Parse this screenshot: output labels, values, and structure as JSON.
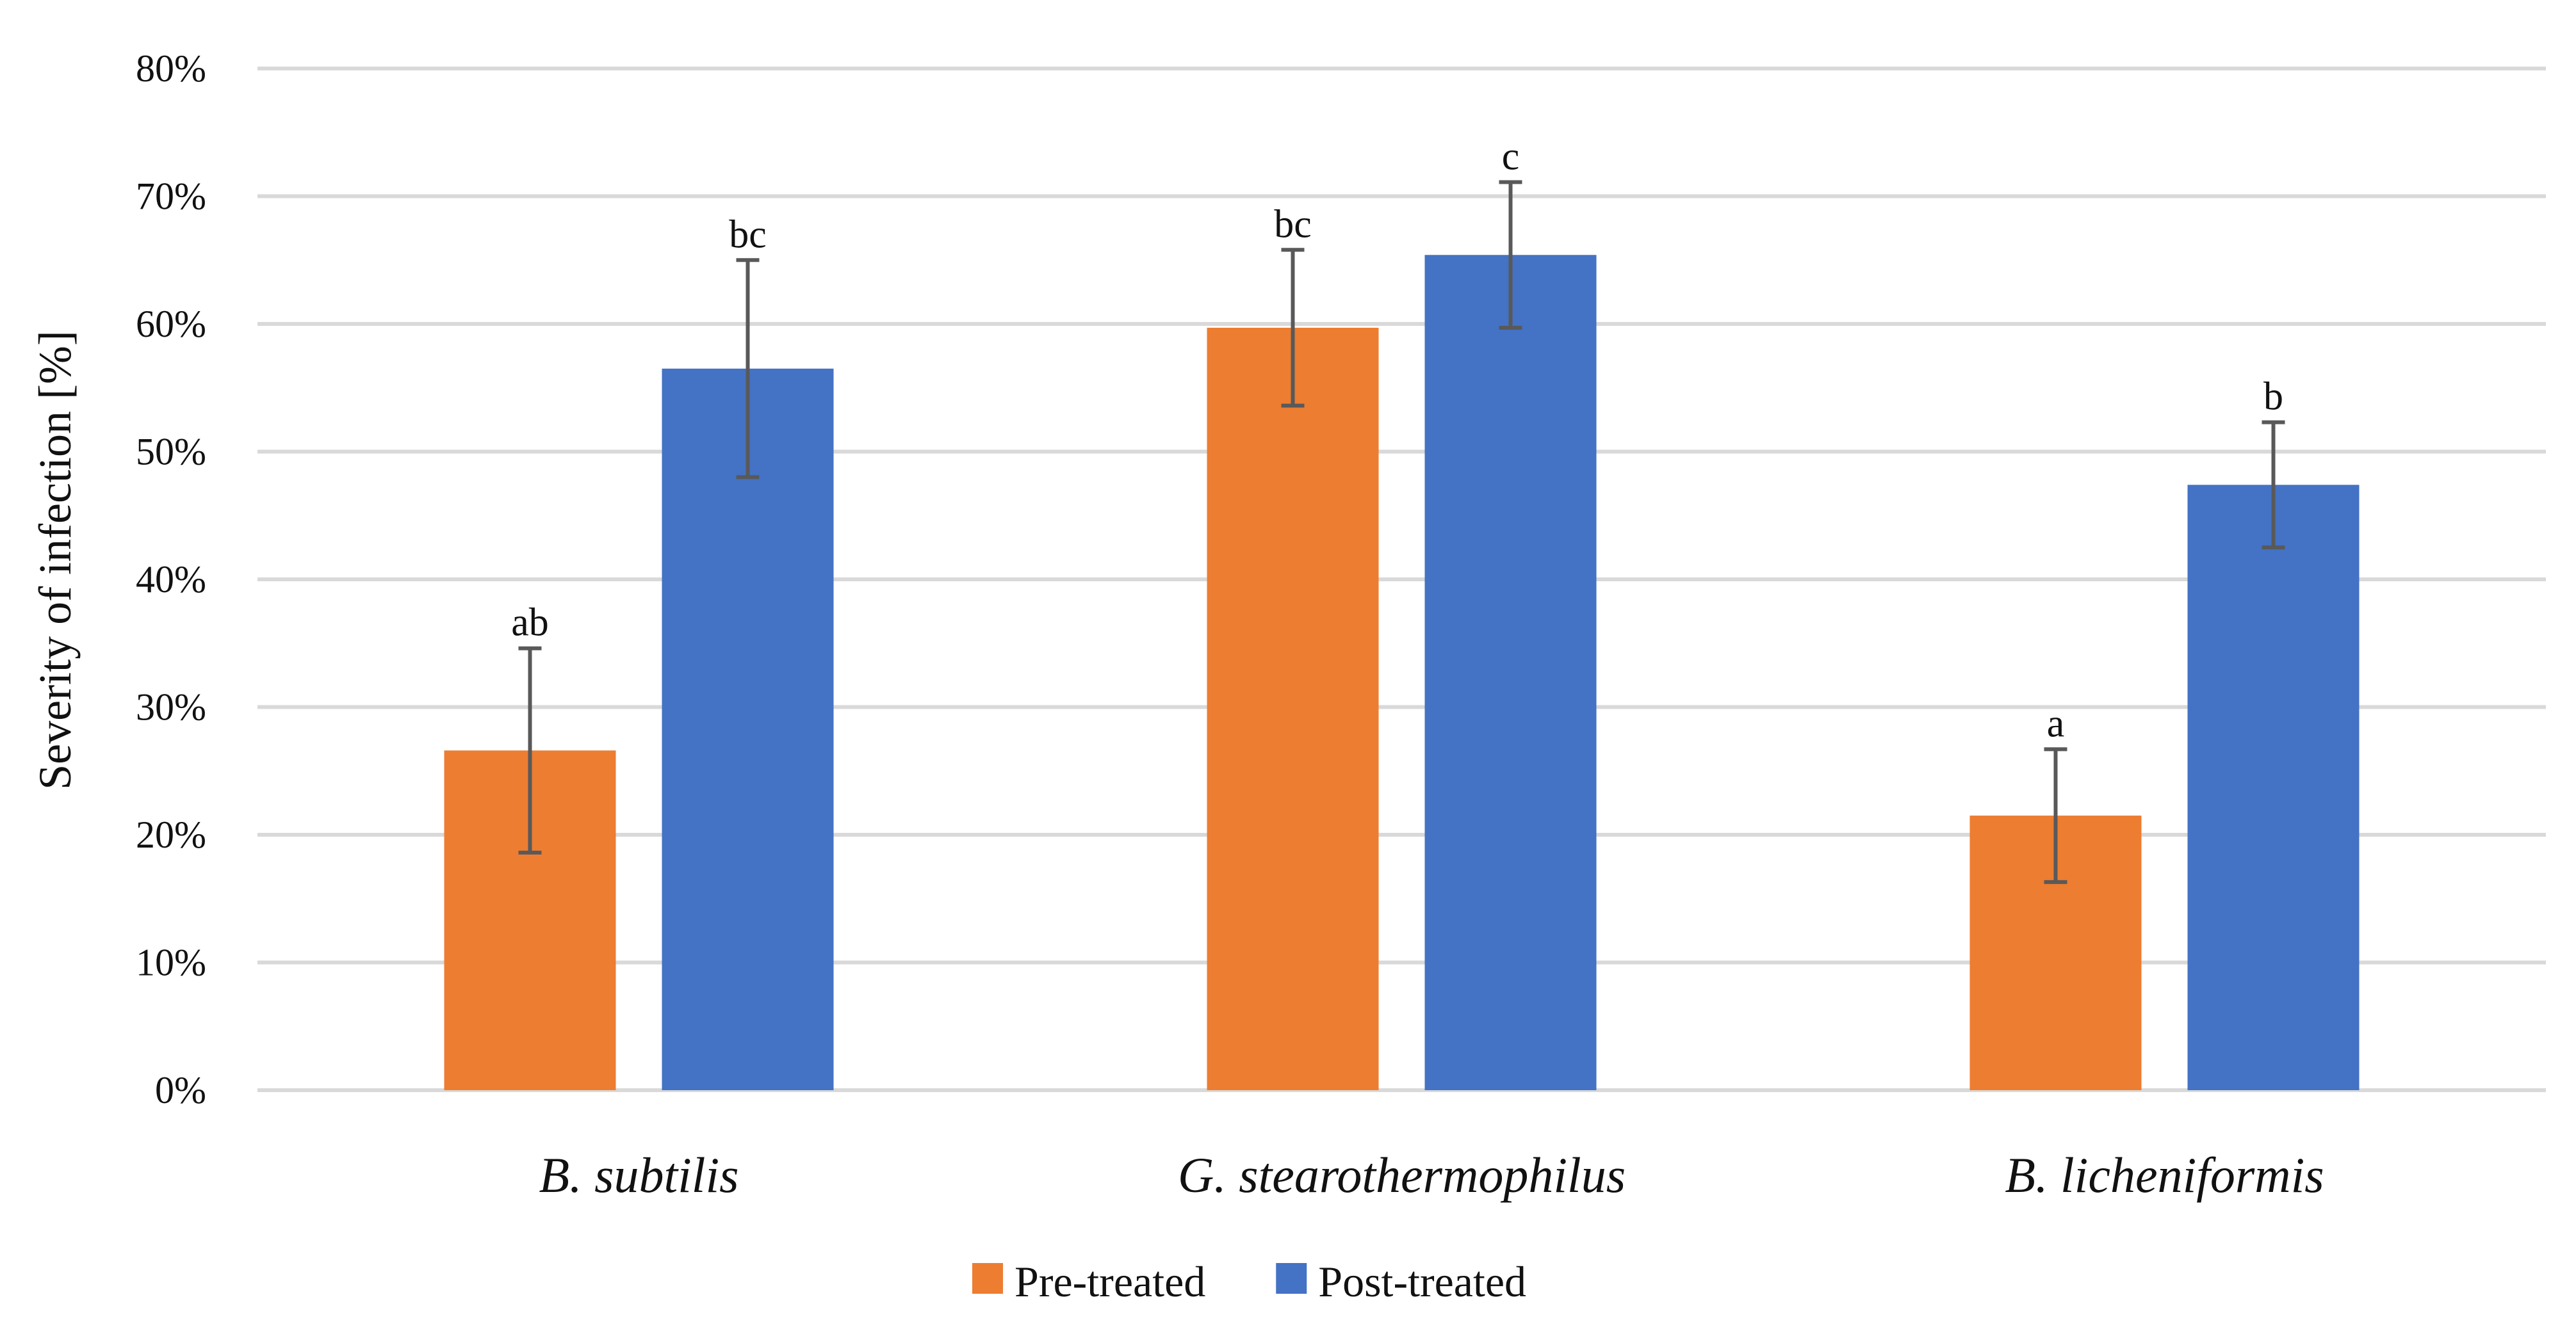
{
  "chart_data": {
    "type": "bar",
    "title": "",
    "xlabel": "",
    "ylabel": "Severity of infection [%]",
    "ylim": [
      0,
      80
    ],
    "y_ticks": [
      0,
      10,
      20,
      30,
      40,
      50,
      60,
      70,
      80
    ],
    "y_tick_suffix": "%",
    "grid": true,
    "legend_position": "bottom",
    "categories": [
      "B. subtilis",
      "G. stearothermophilus",
      "B. licheniformis"
    ],
    "series": [
      {
        "name": "Pre-treated",
        "color": "#ed7d31",
        "values": [
          26.6,
          59.7,
          21.5
        ],
        "errors": [
          8.0,
          6.1,
          5.2
        ],
        "labels": [
          "ab",
          "bc",
          "a"
        ]
      },
      {
        "name": "Post-treated",
        "color": "#4472c4",
        "values": [
          56.5,
          65.4,
          47.4
        ],
        "errors": [
          8.5,
          5.7,
          4.9
        ],
        "labels": [
          "bc",
          "c",
          "b"
        ]
      }
    ]
  }
}
